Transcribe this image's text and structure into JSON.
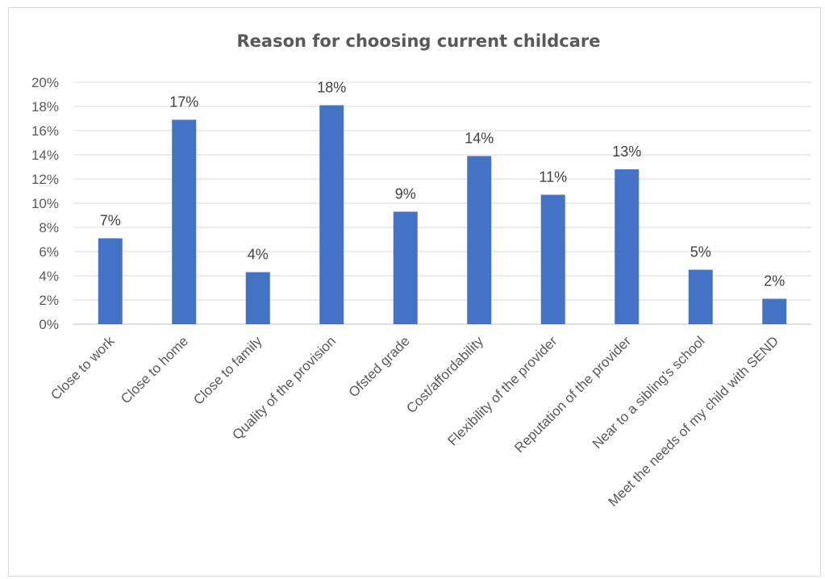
{
  "chart_data": {
    "type": "bar",
    "title": "Reason for choosing current childcare",
    "xlabel": "",
    "ylabel": "",
    "categories": [
      "Close to work",
      "Close to home",
      "Close to family",
      "Quality of the provision",
      "Ofsted grade",
      "Cost/affordability",
      "Flexibility of the provider",
      "Reputation of the provider",
      "Near to a sibling's school",
      "Meet the needs of my child with SEND"
    ],
    "values": [
      7.1,
      16.9,
      4.3,
      18.1,
      9.3,
      13.9,
      10.7,
      12.8,
      4.5,
      2.1
    ],
    "data_labels": [
      "7%",
      "17%",
      "4%",
      "18%",
      "9%",
      "14%",
      "11%",
      "13%",
      "5%",
      "2%"
    ],
    "ylim": [
      0,
      20
    ],
    "yticks": [
      "0%",
      "2%",
      "4%",
      "6%",
      "8%",
      "10%",
      "12%",
      "14%",
      "16%",
      "18%",
      "20%"
    ],
    "grid": true,
    "legend": "none",
    "colors": {
      "bar": "#4472c4"
    }
  }
}
